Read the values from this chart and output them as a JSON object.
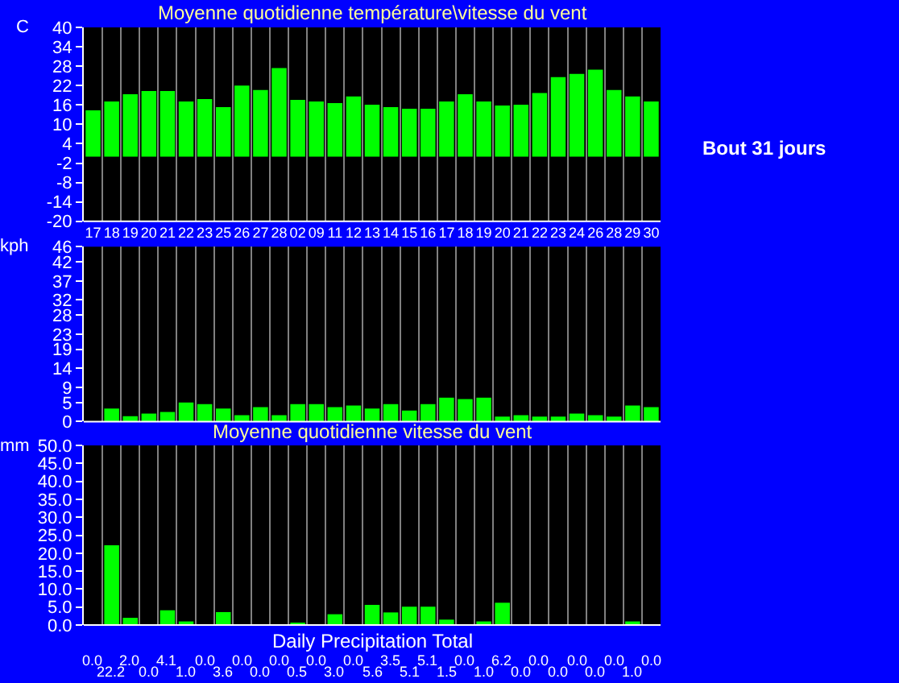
{
  "chart_data": [
    {
      "type": "bar",
      "title": "Moyenne quotidienne température\\vitesse du vent",
      "ylabel": "C",
      "annotations": [
        "Bout 31 jours"
      ],
      "categories": [
        "17",
        "18",
        "19",
        "20",
        "21",
        "22",
        "23",
        "25",
        "26",
        "27",
        "28",
        "02",
        "09",
        "11",
        "12",
        "13",
        "14",
        "15",
        "16",
        "17",
        "18",
        "19",
        "20",
        "21",
        "22",
        "23",
        "24",
        "26",
        "28",
        "29",
        "30"
      ],
      "values": [
        14.3,
        17.1,
        19.3,
        20.3,
        20.3,
        17.1,
        17.8,
        15.3,
        22.0,
        20.6,
        27.4,
        17.6,
        17.1,
        16.6,
        18.6,
        16.1,
        15.3,
        14.8,
        14.8,
        17.1,
        19.3,
        17.1,
        15.8,
        16.1,
        19.7,
        24.6,
        25.6,
        26.9,
        20.6,
        18.6,
        17.1
      ],
      "color": "#00ff00",
      "ylim": [
        -20,
        40
      ],
      "yticks": [
        40,
        34,
        28,
        22,
        16,
        10,
        4,
        -2,
        -8,
        -14,
        -20
      ],
      "grid": "x"
    },
    {
      "type": "bar",
      "ylabel": "kph",
      "tick_labels": "y",
      "categories": [
        "17",
        "18",
        "19",
        "20",
        "21",
        "22",
        "23",
        "25",
        "26",
        "27",
        "28",
        "02",
        "09",
        "11",
        "12",
        "13",
        "14",
        "15",
        "16",
        "17",
        "18",
        "19",
        "20",
        "21",
        "22",
        "23",
        "24",
        "26",
        "28",
        "29",
        "30"
      ],
      "values": [
        0,
        3.4,
        1.4,
        2.1,
        2.5,
        5.0,
        4.6,
        3.4,
        1.7,
        3.8,
        1.7,
        4.6,
        4.6,
        3.8,
        4.2,
        3.4,
        4.6,
        2.9,
        4.6,
        6.3,
        5.9,
        6.3,
        1.3,
        1.7,
        1.3,
        1.3,
        2.1,
        1.7,
        1.3,
        4.2,
        3.8
      ],
      "color": "#00ff00",
      "ylim": [
        0,
        46
      ],
      "yticks": [
        46,
        42,
        37,
        32,
        28,
        23,
        19,
        14,
        9,
        5,
        0
      ],
      "grid": "x"
    },
    {
      "type": "bar",
      "title": "Moyenne quotidienne vitesse du vent",
      "xlabel": "Daily Precipitation Total",
      "ylabel": "mm",
      "tick_labels": "y",
      "categories": [
        "17",
        "18",
        "19",
        "20",
        "21",
        "22",
        "23",
        "25",
        "26",
        "27",
        "28",
        "02",
        "09",
        "11",
        "12",
        "13",
        "14",
        "15",
        "16",
        "17",
        "18",
        "19",
        "20",
        "21",
        "22",
        "23",
        "24",
        "26",
        "28",
        "29",
        "30"
      ],
      "values": [
        0.0,
        22.2,
        2.0,
        0.0,
        4.1,
        1.0,
        0.0,
        3.6,
        0.0,
        0.0,
        0.0,
        0.5,
        0.0,
        3.0,
        0.0,
        5.6,
        3.5,
        5.1,
        5.1,
        1.5,
        0.0,
        1.0,
        6.2,
        0.0,
        0.0,
        0.0,
        0.0,
        0.0,
        0.0,
        1.0,
        0.0
      ],
      "value_labels": [
        "0.0",
        "22.2",
        "2.0",
        "0.0",
        "4.1",
        "1.0",
        "0.0",
        "3.6",
        "0.0",
        "0.0",
        "0.0",
        "0.5",
        "0.0",
        "3.0",
        "0.0",
        "5.6",
        "3.5",
        "5.1",
        "5.1",
        "1.5",
        "0.0",
        "1.0",
        "6.2",
        "0.0",
        "0.0",
        "0.0",
        "0.0",
        "0.0",
        "0.0",
        "1.0",
        "0.0"
      ],
      "color": "#00ff00",
      "ylim": [
        0,
        50
      ],
      "yticks": [
        {
          "value": 50,
          "label": "50.0"
        },
        {
          "value": 45,
          "label": "45.0"
        },
        {
          "value": 40,
          "label": "40.0"
        },
        {
          "value": 35,
          "label": "35.0"
        },
        {
          "value": 30,
          "label": "30.0"
        },
        {
          "value": 25,
          "label": "25.0"
        },
        {
          "value": 20,
          "label": "20.0"
        },
        {
          "value": 15,
          "label": "15.0"
        },
        {
          "value": 10,
          "label": "10.0"
        },
        {
          "value": 5,
          "label": "5.0"
        },
        {
          "value": 0,
          "label": "0.0"
        }
      ],
      "grid": "x"
    }
  ]
}
